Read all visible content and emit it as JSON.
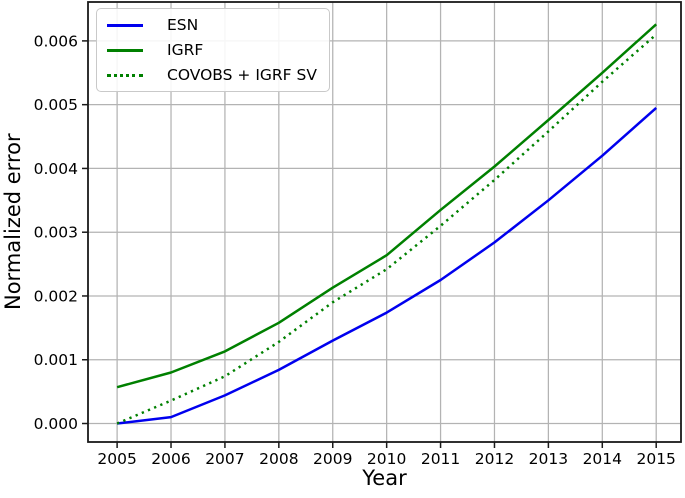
{
  "chart_data": {
    "type": "line",
    "title": "",
    "xlabel": "Year",
    "ylabel": "Normalized error",
    "grid": true,
    "legend_position": "upper left",
    "x": [
      2005,
      2006,
      2007,
      2008,
      2009,
      2010,
      2011,
      2012,
      2013,
      2014,
      2015
    ],
    "x_tick_labels": [
      "2005",
      "2006",
      "2007",
      "2008",
      "2009",
      "2010",
      "2011",
      "2012",
      "2013",
      "2014",
      "2015"
    ],
    "y_tick_values": [
      0.0,
      0.001,
      0.002,
      0.003,
      0.004,
      0.005,
      0.006
    ],
    "y_tick_labels": [
      "0.000",
      "0.001",
      "0.002",
      "0.003",
      "0.004",
      "0.005",
      "0.006"
    ],
    "xlim": [
      2004.46,
      2015.46
    ],
    "ylim": [
      -0.00029,
      0.00661
    ],
    "series": [
      {
        "name": "ESN",
        "color": "#0000ee",
        "style": "solid",
        "values": [
          0.0,
          0.0001,
          0.00044,
          0.00084,
          0.0013,
          0.00174,
          0.00225,
          0.00284,
          0.0035,
          0.0042,
          0.00495
        ]
      },
      {
        "name": "IGRF",
        "color": "#008000",
        "style": "solid",
        "values": [
          0.00057,
          0.0008,
          0.00113,
          0.00158,
          0.00213,
          0.00264,
          0.00335,
          0.00403,
          0.00476,
          0.0055,
          0.00626
        ]
      },
      {
        "name": "COVOBS + IGRF SV",
        "color": "#008000",
        "style": "dotted",
        "values": [
          0.0,
          0.00036,
          0.00074,
          0.00128,
          0.0019,
          0.00242,
          0.0031,
          0.00382,
          0.00458,
          0.00536,
          0.0061
        ]
      }
    ],
    "style_colors": {
      "grid": "#b3b3b3",
      "spine": "#1a1a1a",
      "tick_text": "#000000"
    }
  }
}
